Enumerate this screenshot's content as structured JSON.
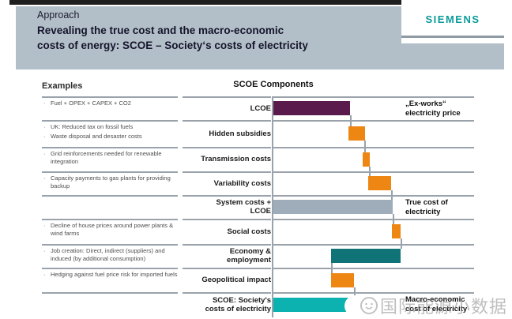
{
  "header": {
    "eyebrow": "Approach",
    "title": "Revealing the true cost and the macro-economic\ncosts of energy: SCOE – Society‘s costs of electricity",
    "brand": "SIEMENS"
  },
  "content": {
    "examples_heading": "Examples",
    "chart_title": "SCOE Components"
  },
  "watermark": {
    "text": "国际能源小数据"
  },
  "colors": {
    "header_bg": "#b3bfc8",
    "top_strip": "#1f1f1f",
    "brand_teal": "#0b9a9a",
    "bar_purple": "#5a1a4c",
    "bar_orange": "#ee8613",
    "bar_gray": "#9fadba",
    "bar_teal_dark": "#0f7378",
    "bar_teal_bright": "#0cb2af",
    "grid_line": "#9aa3ab"
  },
  "chart_data": {
    "type": "bar",
    "subtype": "horizontal-waterfall",
    "title": "SCOE Components",
    "xlabel": "",
    "ylabel": "",
    "axis_note": "no numeric axis shown; bar extents are relative cost units (chart width = 255)",
    "xlim": [
      0,
      255
    ],
    "grid": "horizontal row separators",
    "legend_position": "none",
    "rows": [
      {
        "label": "LCOE",
        "examples": [
          "Fuel + OPEX + CAPEX + CO2"
        ],
        "bar": {
          "start": 1,
          "end": 98,
          "color": "purple"
        },
        "connector": 98,
        "annotation": "„Ex-works“\nelectricity price"
      },
      {
        "label": "Hidden subsidies",
        "examples": [
          "UK: Reduced tax on fossil fuels",
          "Waste disposal and desaster costs"
        ],
        "bar": {
          "start": 96,
          "end": 117,
          "color": "orange"
        },
        "connector": 116
      },
      {
        "label": "Transmission costs",
        "examples": [
          "Grid reinforcements needed for renewable integration"
        ],
        "bar": {
          "start": 114,
          "end": 123,
          "color": "orange"
        },
        "connector": 122
      },
      {
        "label": "Variability costs",
        "examples": [
          "Capacity payments to gas plants for providing backup"
        ],
        "bar": {
          "start": 121,
          "end": 150,
          "color": "orange"
        },
        "connector": 150
      },
      {
        "label": "System costs +\nLCOE",
        "examples": [],
        "bar": {
          "start": 1,
          "end": 152,
          "color": "gray"
        },
        "connector": 152,
        "annotation": "True cost of\nelectricity"
      },
      {
        "label": "Social costs",
        "examples": [
          "Decline of house prices around power plants & wind farms"
        ],
        "bar": {
          "start": 151,
          "end": 162,
          "color": "orange"
        },
        "connector": 162
      },
      {
        "label": "Economy &\nemployment",
        "examples": [
          "Job creation: Direct, indirect (suppliers) and induced (by additional consumption)"
        ],
        "bar": {
          "start": 74,
          "end": 162,
          "color": "teal_dark"
        },
        "connector": 74
      },
      {
        "label": "Geopolitical impact",
        "examples": [
          "Hedging against fuel price risk for imported fuels"
        ],
        "bar": {
          "start": 74,
          "end": 103,
          "color": "orange"
        },
        "connector": 103
      },
      {
        "label": "SCOE: Society's\ncosts of electricity",
        "examples": [],
        "bar": {
          "start": 1,
          "end": 104,
          "color": "teal_bright"
        },
        "annotation": "Macro-economic\ncost of electricity"
      }
    ]
  }
}
